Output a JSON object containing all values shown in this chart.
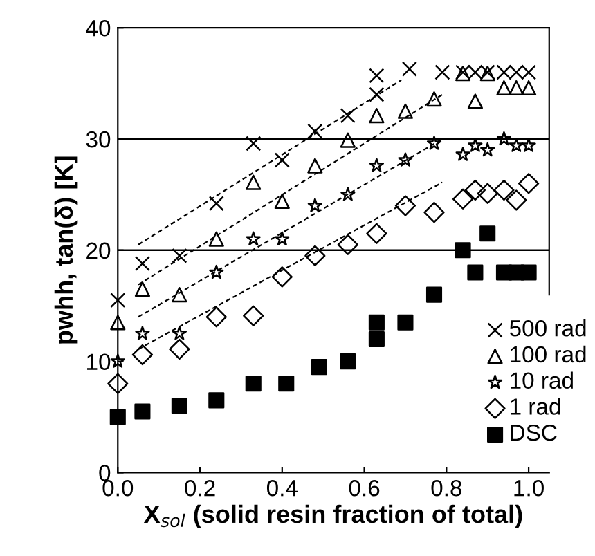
{
  "chart_data": {
    "type": "scatter",
    "xlabel": "X$_{sol}$ (solid resin fraction of total)",
    "ylabel": "pwhh, tan(δ) [K]",
    "xlim": [
      0,
      1.05
    ],
    "ylim": [
      0,
      40
    ],
    "xticks": [
      {
        "value": 0,
        "label": "0.0"
      },
      {
        "value": 0.2,
        "label": "0.2"
      },
      {
        "value": 0.4,
        "label": "0.4"
      },
      {
        "value": 0.6,
        "label": "0.6"
      },
      {
        "value": 0.8,
        "label": "0.8"
      },
      {
        "value": 1.0,
        "label": "1.0"
      }
    ],
    "yticks": [
      0,
      10,
      20,
      30,
      40
    ],
    "legend": "bottom right",
    "ref_lines": [
      {
        "axis": "y",
        "value": 20,
        "color": "#000000"
      },
      {
        "axis": "y",
        "value": 30,
        "color": "#000000"
      }
    ],
    "series": [
      {
        "name": "500 rad",
        "color": "#000000",
        "marker": "cross",
        "x": [
          0,
          0.06,
          0.15,
          0.24,
          0.33,
          0.4,
          0.48,
          0.56,
          0.63,
          0.63,
          0.71,
          0.79,
          0.84,
          0.87,
          0.9,
          0.94,
          0.97,
          1.0
        ],
        "values": [
          15.5,
          18.8,
          19.5,
          24.2,
          29.6,
          28.1,
          30.7,
          32.1,
          34.0,
          35.7,
          36.3,
          36.0,
          36.0,
          36.0,
          36.0,
          36.0,
          36.0,
          36.0
        ]
      },
      {
        "name": "100 rad",
        "color": "#000000",
        "marker": "triangle",
        "x": [
          0,
          0.06,
          0.15,
          0.24,
          0.33,
          0.4,
          0.48,
          0.56,
          0.63,
          0.7,
          0.77,
          0.84,
          0.87,
          0.9,
          0.94,
          0.97,
          1.0
        ],
        "values": [
          13.5,
          16.5,
          16.0,
          21.0,
          26.1,
          24.4,
          27.6,
          29.9,
          32.1,
          32.5,
          33.6,
          35.9,
          33.4,
          35.9,
          34.6,
          34.6,
          34.6
        ]
      },
      {
        "name": "10 rad",
        "color": "#000000",
        "marker": "star",
        "x": [
          0,
          0.06,
          0.15,
          0.24,
          0.33,
          0.4,
          0.48,
          0.56,
          0.63,
          0.7,
          0.77,
          0.84,
          0.87,
          0.9,
          0.94,
          0.97,
          1.0
        ],
        "values": [
          10.0,
          12.5,
          12.5,
          18.0,
          21.0,
          21.0,
          24.0,
          25.0,
          27.6,
          28.1,
          29.6,
          28.6,
          29.4,
          29.0,
          30.0,
          29.4,
          29.4
        ]
      },
      {
        "name": "1 rad",
        "color": "#000000",
        "marker": "diamond",
        "x": [
          0,
          0.06,
          0.15,
          0.24,
          0.33,
          0.4,
          0.48,
          0.56,
          0.63,
          0.7,
          0.77,
          0.84,
          0.87,
          0.9,
          0.94,
          0.97,
          1.0
        ],
        "values": [
          8.0,
          10.6,
          11.1,
          14.0,
          14.1,
          17.6,
          19.5,
          20.5,
          21.5,
          24.0,
          23.4,
          24.6,
          25.4,
          25.1,
          25.4,
          24.5,
          26.0
        ]
      },
      {
        "name": "DSC",
        "color": "#000000",
        "marker": "square",
        "x": [
          0,
          0.06,
          0.15,
          0.24,
          0.33,
          0.41,
          0.49,
          0.56,
          0.63,
          0.63,
          0.7,
          0.77,
          0.84,
          0.87,
          0.9,
          0.94,
          0.97,
          1.0
        ],
        "values": [
          5.0,
          5.5,
          6.0,
          6.5,
          8.0,
          8.0,
          9.5,
          10.0,
          12.0,
          13.5,
          13.5,
          16.0,
          20.0,
          18.0,
          21.5,
          18.0,
          18.0,
          18.0
        ]
      },
      {
        "type": "line",
        "color": "#000000",
        "line_style": "dashed",
        "x": [
          0.05,
          0.69
        ],
        "values": [
          20.5,
          35.3
        ]
      },
      {
        "type": "line",
        "color": "#000000",
        "line_style": "dashed",
        "x": [
          0.05,
          0.79
        ],
        "values": [
          16.9,
          34.0
        ]
      },
      {
        "type": "line",
        "color": "#000000",
        "line_style": "dashed",
        "x": [
          0.05,
          0.79
        ],
        "values": [
          14.0,
          30.0
        ]
      },
      {
        "type": "line",
        "color": "#000000",
        "line_style": "dashed",
        "x": [
          0.05,
          0.79
        ],
        "values": [
          11.1,
          26.1
        ]
      }
    ]
  }
}
